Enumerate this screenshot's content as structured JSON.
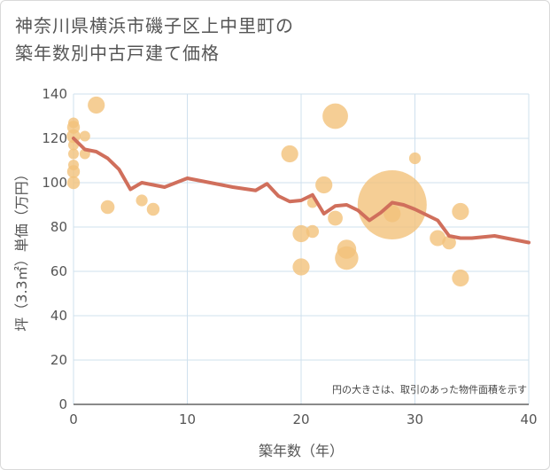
{
  "title_line1": "神奈川県横浜市磯子区上中里町の",
  "title_line2": "築年数別中古戸建て価格",
  "chart_data": {
    "type": "scatter",
    "title": "神奈川県横浜市磯子区上中里町の築年数別中古戸建て価格",
    "xlabel": "築年数（年）",
    "ylabel": "坪（3.3㎡）単価（万円）",
    "xlim": [
      0,
      40
    ],
    "ylim": [
      0,
      140
    ],
    "xticks": [
      0,
      10,
      20,
      30,
      40
    ],
    "yticks": [
      0,
      20,
      40,
      60,
      80,
      100,
      120,
      140
    ],
    "grid": true,
    "note": "円の大きさは、取引のあった物件面積を示す",
    "colors": {
      "bubble": "#f3c27a",
      "line": "#d06f5c",
      "grid": "#cfe0ee"
    },
    "points": [
      {
        "x": 0,
        "y": 127,
        "size": 1
      },
      {
        "x": 0,
        "y": 125,
        "size": 1.2
      },
      {
        "x": 0,
        "y": 121,
        "size": 1.3
      },
      {
        "x": 0,
        "y": 117,
        "size": 1
      },
      {
        "x": 0,
        "y": 113,
        "size": 1
      },
      {
        "x": 0,
        "y": 108,
        "size": 1
      },
      {
        "x": 0,
        "y": 105,
        "size": 1.2
      },
      {
        "x": 0,
        "y": 100,
        "size": 1.2
      },
      {
        "x": 1,
        "y": 121,
        "size": 1
      },
      {
        "x": 1,
        "y": 113,
        "size": 1
      },
      {
        "x": 2,
        "y": 135,
        "size": 1.6
      },
      {
        "x": 3,
        "y": 89,
        "size": 1.3
      },
      {
        "x": 6,
        "y": 92,
        "size": 1.1
      },
      {
        "x": 7,
        "y": 88,
        "size": 1.2
      },
      {
        "x": 19,
        "y": 113,
        "size": 1.6
      },
      {
        "x": 20,
        "y": 77,
        "size": 1.6
      },
      {
        "x": 20,
        "y": 62,
        "size": 1.6
      },
      {
        "x": 21,
        "y": 91,
        "size": 1
      },
      {
        "x": 21,
        "y": 78,
        "size": 1.2
      },
      {
        "x": 22,
        "y": 99,
        "size": 1.6
      },
      {
        "x": 23,
        "y": 130,
        "size": 2.4
      },
      {
        "x": 23,
        "y": 84,
        "size": 1.4
      },
      {
        "x": 24,
        "y": 70,
        "size": 1.8
      },
      {
        "x": 24,
        "y": 66,
        "size": 2.2
      },
      {
        "x": 28,
        "y": 90,
        "size": 6.5
      },
      {
        "x": 28,
        "y": 86,
        "size": 1.6
      },
      {
        "x": 30,
        "y": 111,
        "size": 1.1
      },
      {
        "x": 32,
        "y": 75,
        "size": 1.5
      },
      {
        "x": 33,
        "y": 73,
        "size": 1.3
      },
      {
        "x": 34,
        "y": 87,
        "size": 1.6
      },
      {
        "x": 34,
        "y": 57,
        "size": 1.6
      }
    ],
    "trend": {
      "x": [
        0,
        1,
        2,
        3,
        4,
        5,
        6,
        8,
        10,
        14,
        16,
        17,
        18,
        19,
        20,
        21,
        22,
        23,
        24,
        25,
        26,
        27,
        28,
        29,
        30,
        31,
        32,
        33,
        34,
        35,
        37,
        40
      ],
      "y": [
        120,
        115,
        114,
        111,
        106,
        97,
        100,
        98,
        102,
        98,
        96.5,
        99.5,
        94,
        91.5,
        92,
        94.5,
        86,
        89.5,
        90,
        87.5,
        83,
        86.5,
        91,
        90,
        88,
        85.5,
        83,
        76,
        75,
        75,
        76,
        73
      ]
    }
  }
}
